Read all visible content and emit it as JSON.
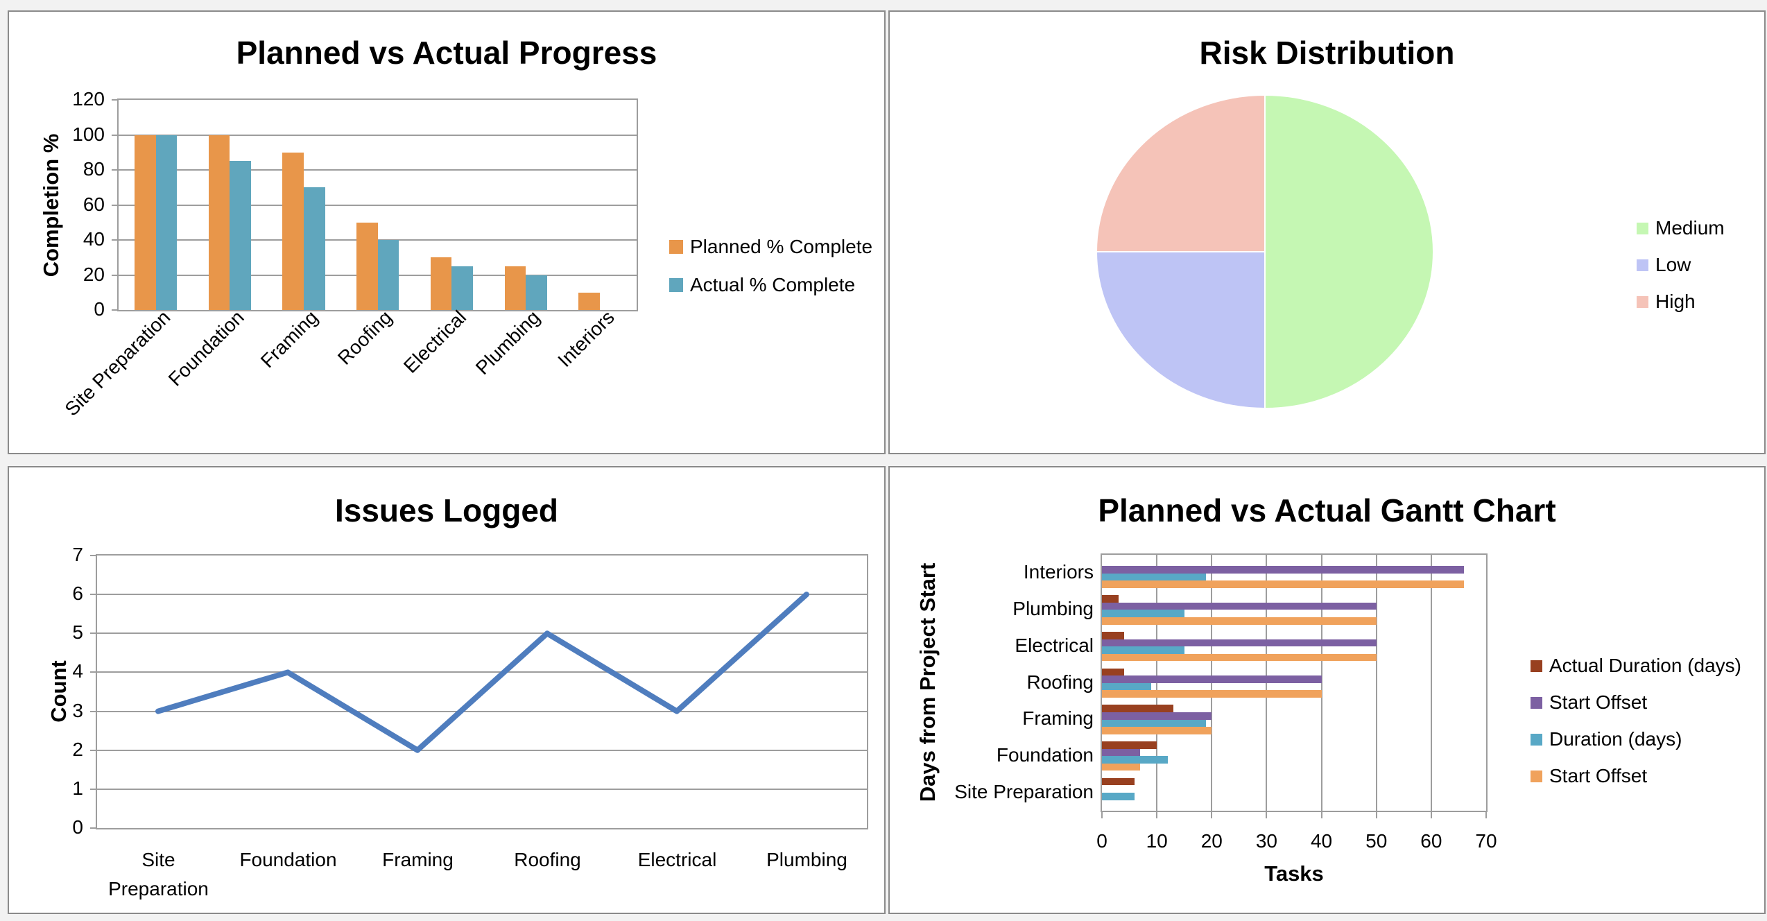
{
  "window": {
    "background": "#f2f2f2",
    "panel_background": "#ffffff",
    "panel_border": "#8a8a8a",
    "gridline_color": "#9d9d9d",
    "text_color": "#000000"
  },
  "chart_data": [
    {
      "id": "progress",
      "type": "bar",
      "title": "Planned vs Actual Progress",
      "ylabel": "Completion %",
      "categories": [
        "Site Preparation",
        "Foundation",
        "Framing",
        "Roofing",
        "Electrical",
        "Plumbing",
        "Interiors"
      ],
      "series": [
        {
          "name": "Planned % Complete",
          "color": "#E8964A",
          "values": [
            100,
            100,
            90,
            50,
            30,
            25,
            10
          ]
        },
        {
          "name": "Actual % Complete",
          "color": "#60A6BD",
          "values": [
            100,
            85,
            70,
            40,
            25,
            20,
            0
          ]
        }
      ],
      "ylim": [
        0,
        120
      ],
      "yticks": [
        0,
        20,
        40,
        60,
        80,
        100,
        120
      ],
      "grid": true,
      "legend_position": "right"
    },
    {
      "id": "risk",
      "type": "pie",
      "title": "Risk Distribution",
      "slices": [
        {
          "label": "Medium",
          "value": 50,
          "color": "#C5F7B3"
        },
        {
          "label": "Low",
          "value": 25,
          "color": "#BEC4F5"
        },
        {
          "label": "High",
          "value": 25,
          "color": "#F5C3B8"
        }
      ],
      "start_angle_deg": -90,
      "direction": "clockwise",
      "legend_position": "right"
    },
    {
      "id": "issues",
      "type": "line",
      "title": "Issues Logged",
      "ylabel": "Count",
      "categories": [
        "Site Preparation",
        "Foundation",
        "Framing",
        "Roofing",
        "Electrical",
        "Plumbing"
      ],
      "values": [
        3,
        4,
        2,
        5,
        3,
        6
      ],
      "line_color": "#4F7DBE",
      "ylim": [
        0,
        7
      ],
      "yticks": [
        0,
        1,
        2,
        3,
        4,
        5,
        6,
        7
      ],
      "grid": true
    },
    {
      "id": "gantt",
      "type": "bar-horizontal",
      "title": "Planned vs Actual Gantt Chart",
      "xlabel": "Tasks",
      "ylabel": "Days from Project Start",
      "categories_top_to_bottom": [
        "Interiors",
        "Plumbing",
        "Electrical",
        "Roofing",
        "Framing",
        "Foundation",
        "Site Preparation"
      ],
      "series": [
        {
          "name": "Actual Duration (days)",
          "color": "#984020",
          "values": [
            0,
            3,
            4,
            4,
            13,
            10,
            6
          ]
        },
        {
          "name": "Start Offset",
          "color": "#7C60A2",
          "values": [
            66,
            50,
            50,
            40,
            20,
            7,
            0
          ]
        },
        {
          "name": "Duration (days)",
          "color": "#58A8C6",
          "values": [
            19,
            15,
            15,
            9,
            19,
            12,
            6
          ]
        },
        {
          "name": "Start Offset",
          "color": "#F0A25C",
          "values": [
            66,
            50,
            50,
            40,
            20,
            7,
            0
          ]
        }
      ],
      "xlim": [
        0,
        70
      ],
      "xticks": [
        0,
        10,
        20,
        30,
        40,
        50,
        60,
        70
      ],
      "grid": true,
      "legend_position": "right"
    }
  ]
}
